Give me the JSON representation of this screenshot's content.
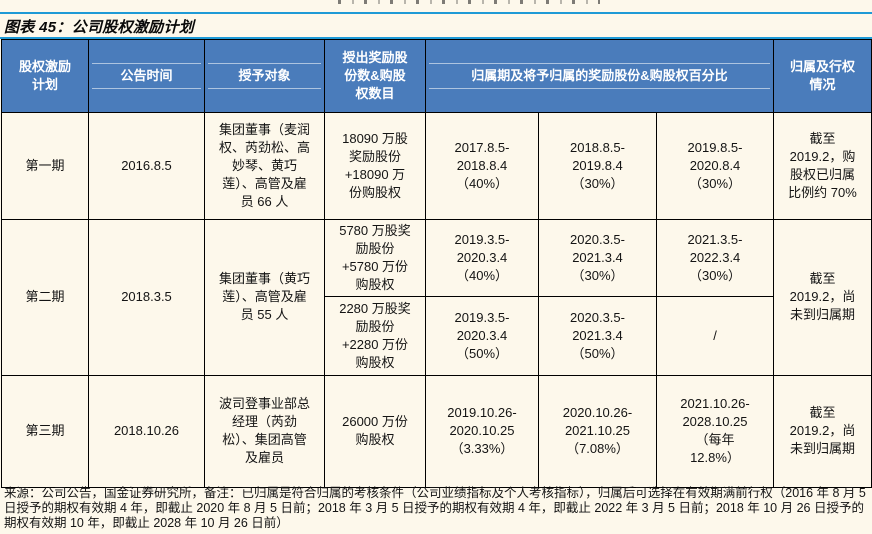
{
  "title": "图表 45：公司股权激励计划",
  "colors": {
    "header_bg": "#4A7CBB",
    "header_text": "#FFFFFF",
    "page_bg": "#FDF8EB",
    "accent_line": "#1E9AD6",
    "table_border": "#000000"
  },
  "table": {
    "header": {
      "plan": "股权激励\n计划",
      "announce_date": "公告时间",
      "grantee": "授予对象",
      "grant_amount": "授出奖励股\n份数&购股\n权数目",
      "vesting": "归属期及将予归属的奖励股份&购股权百分比",
      "status": "归属及行权\n情况"
    },
    "phase1": {
      "plan": "第一期",
      "date": "2016.8.5",
      "grantee": "集团董事（麦润\n权、芮劲松、高\n妙琴、黄巧\n莲）、高管及雇\n员 66 人",
      "grant": "18090 万股\n奖励股份\n+18090 万\n份购股权",
      "vest1": "2017.8.5-\n2018.8.4\n（40%）",
      "vest2": "2018.8.5-\n2019.8.4\n（30%）",
      "vest3": "2019.8.5-\n2020.8.4\n（30%）",
      "status": "截至\n2019.2，购\n股权已归属\n比例约 70%"
    },
    "phase2": {
      "plan": "第二期",
      "date": "2018.3.5",
      "grantee": "集团董事（黄巧\n莲）、高管及雇\n员 55 人",
      "status": "截至\n2019.2，尚\n未到归属期",
      "award": {
        "grant": "5780 万股奖\n励股份\n+5780 万份\n购股权",
        "vest1": "2019.3.5-\n2020.3.4\n（40%）",
        "vest2": "2020.3.5-\n2021.3.4\n（30%）",
        "vest3": "2021.3.5-\n2022.3.4\n（30%）"
      },
      "option": {
        "grant": "2280 万股奖\n励股份\n+2280 万份\n购股权",
        "vest1": "2019.3.5-\n2020.3.4\n（50%）",
        "vest2": "2020.3.5-\n2021.3.4\n（50%）",
        "vest3": "/"
      }
    },
    "phase3": {
      "plan": "第三期",
      "date": "2018.10.26",
      "grantee": "波司登事业部总\n经理（芮劲\n松）、集团高管\n及雇员",
      "grant": "26000 万份\n购股权",
      "vest1": "2019.10.26-\n2020.10.25\n（3.33%）",
      "vest2": "2020.10.26-\n2021.10.25\n（7.08%）",
      "vest3": "2021.10.26-\n2028.10.25\n（每年\n12.8%）",
      "status": "截至\n2019.2，尚\n未到归属期"
    }
  },
  "source_note": "来源：公司公告，国金证券研究所，备注：已归属是符合归属的考核条件（公司业绩指标及个人考核指标），归属后可选择在有效期满前行权（2016 年 8 月 5 日授予的期权有效期 4 年，即截止 2020 年 8 月 5 日前；2018 年 3 月 5 日授予的期权有效期 4 年，即截止 2022 年 3 月 5 日前；2018 年 10 月 26 日授予的期权有效期 10 年，即截止 2028 年 10 月 26 日前）"
}
